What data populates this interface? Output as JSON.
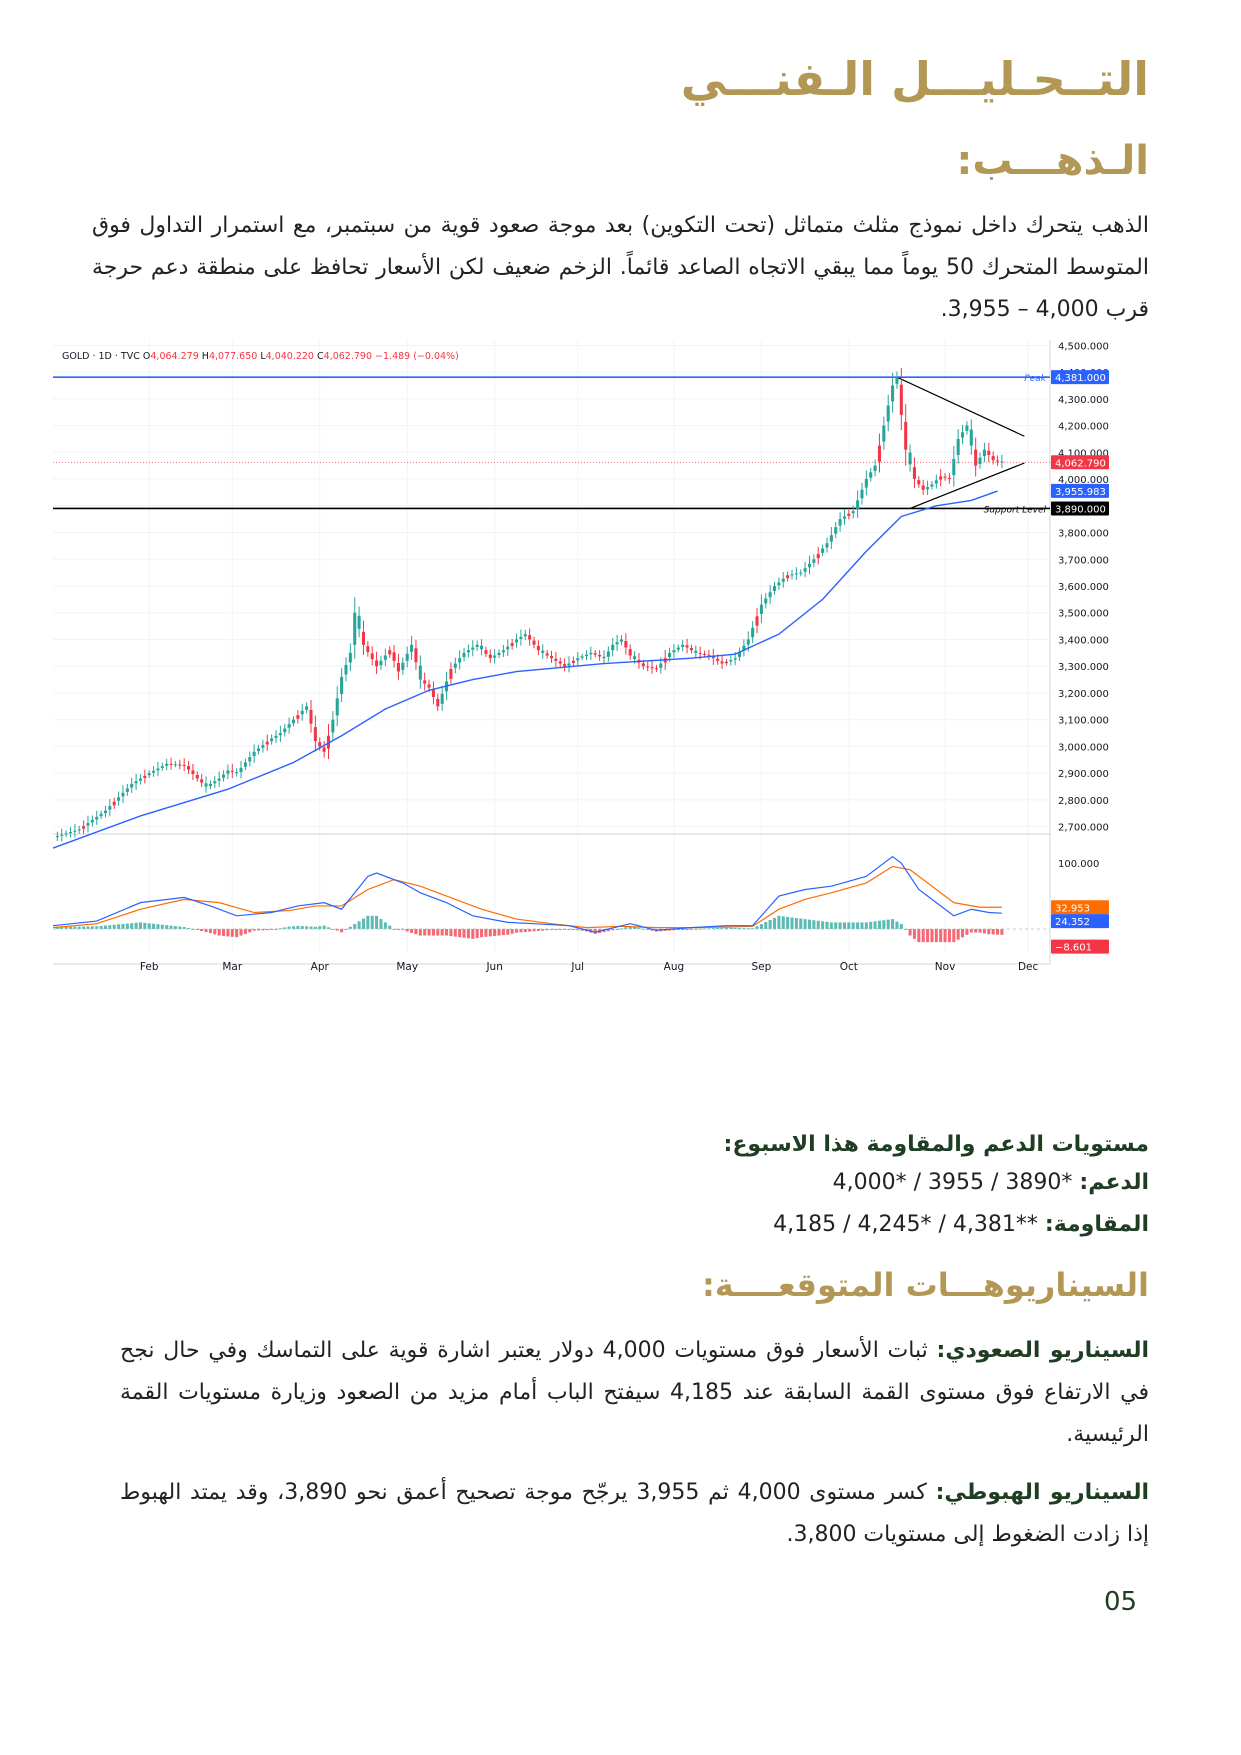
{
  "header": {
    "title": "التــحـليـــل الـفنـــي",
    "subtitle": "الـذهـــب:"
  },
  "intro": "الذهب يتحرك داخل نموذج مثلث متماثل (تحت التكوين) بعد موجة صعود قوية من سبتمبر، مع استمرار التداول فوق المتوسط المتحرك 50 يوماً مما يبقي الاتجاه الصاعد قائماً. الزخم ضعيف لكن الأسعار تحافظ على منطقة دعم حرجة قرب 4,000 – 3,955.",
  "chart_data": {
    "type": "candlestick",
    "header": {
      "symbol": "GOLD · 1D · TVC",
      "o_label": "O",
      "o": "4,064.279",
      "h_label": "H",
      "h": "4,077.650",
      "l_label": "L",
      "l": "4,040.220",
      "c_label": "C",
      "c": "4,062.790",
      "change": "−1.489 (−0.04%)"
    },
    "ylim": [
      2680,
      4520
    ],
    "y_ticks": [
      2700,
      2800,
      2900,
      3000,
      3100,
      3200,
      3300,
      3400,
      3500,
      3600,
      3700,
      3800,
      3900,
      4000,
      4100,
      4200,
      4300,
      4400,
      4500
    ],
    "y_tick_labels": [
      "2,700.000",
      "2,800.000",
      "2,900.000",
      "3,000.000",
      "3,100.000",
      "3,200.000",
      "3,300.000",
      "3,400.000",
      "3,500.000",
      "3,600.000",
      "3,700.000",
      "3,800.000",
      "3,900.000",
      "4,000.000",
      "4,100.000",
      "4,200.000",
      "4,300.000",
      "4,400.000",
      "4,500.000"
    ],
    "x_labels": [
      "Feb",
      "Mar",
      "Apr",
      "May",
      "Jun",
      "Jul",
      "Aug",
      "Sep",
      "Oct",
      "Nov",
      "Dec"
    ],
    "x_label_days": [
      22,
      41,
      61,
      81,
      101,
      120,
      142,
      162,
      182,
      204,
      223
    ],
    "x_range_days": [
      0,
      228
    ],
    "price_path": [
      [
        0,
        2660
      ],
      [
        6,
        2690
      ],
      [
        12,
        2760
      ],
      [
        18,
        2860
      ],
      [
        22,
        2900
      ],
      [
        26,
        2935
      ],
      [
        30,
        2930
      ],
      [
        33,
        2880
      ],
      [
        35,
        2850
      ],
      [
        38,
        2880
      ],
      [
        40,
        2910
      ],
      [
        42,
        2900
      ],
      [
        46,
        2980
      ],
      [
        50,
        3030
      ],
      [
        52,
        3050
      ],
      [
        55,
        3100
      ],
      [
        58,
        3150
      ],
      [
        60,
        3020
      ],
      [
        62,
        2980
      ],
      [
        64,
        3100
      ],
      [
        66,
        3260
      ],
      [
        68,
        3350
      ],
      [
        69,
        3500
      ],
      [
        71,
        3380
      ],
      [
        74,
        3300
      ],
      [
        77,
        3360
      ],
      [
        79,
        3280
      ],
      [
        82,
        3380
      ],
      [
        84,
        3250
      ],
      [
        86,
        3220
      ],
      [
        88,
        3150
      ],
      [
        91,
        3290
      ],
      [
        94,
        3350
      ],
      [
        97,
        3380
      ],
      [
        100,
        3330
      ],
      [
        103,
        3360
      ],
      [
        106,
        3400
      ],
      [
        108,
        3420
      ],
      [
        111,
        3360
      ],
      [
        114,
        3330
      ],
      [
        117,
        3300
      ],
      [
        120,
        3330
      ],
      [
        123,
        3350
      ],
      [
        126,
        3330
      ],
      [
        128,
        3380
      ],
      [
        130,
        3400
      ],
      [
        132,
        3340
      ],
      [
        135,
        3300
      ],
      [
        138,
        3290
      ],
      [
        141,
        3350
      ],
      [
        144,
        3380
      ],
      [
        147,
        3350
      ],
      [
        150,
        3340
      ],
      [
        153,
        3310
      ],
      [
        156,
        3330
      ],
      [
        159,
        3400
      ],
      [
        162,
        3530
      ],
      [
        165,
        3600
      ],
      [
        168,
        3640
      ],
      [
        171,
        3650
      ],
      [
        174,
        3700
      ],
      [
        177,
        3760
      ],
      [
        180,
        3850
      ],
      [
        183,
        3880
      ],
      [
        186,
        4000
      ],
      [
        188,
        4050
      ],
      [
        190,
        4200
      ],
      [
        192,
        4350
      ],
      [
        193,
        4381
      ],
      [
        194,
        4240
      ],
      [
        195,
        4110
      ],
      [
        197,
        4000
      ],
      [
        199,
        3960
      ],
      [
        201,
        3980
      ],
      [
        203,
        4010
      ],
      [
        205,
        4000
      ],
      [
        207,
        4150
      ],
      [
        209,
        4200
      ],
      [
        211,
        4050
      ],
      [
        213,
        4110
      ],
      [
        215,
        4070
      ],
      [
        217,
        4063
      ]
    ],
    "ma50_path": [
      [
        0,
        2620
      ],
      [
        20,
        2740
      ],
      [
        40,
        2840
      ],
      [
        55,
        2940
      ],
      [
        66,
        3040
      ],
      [
        76,
        3140
      ],
      [
        86,
        3210
      ],
      [
        96,
        3250
      ],
      [
        106,
        3280
      ],
      [
        116,
        3295
      ],
      [
        126,
        3310
      ],
      [
        136,
        3320
      ],
      [
        146,
        3330
      ],
      [
        156,
        3345
      ],
      [
        166,
        3420
      ],
      [
        176,
        3550
      ],
      [
        186,
        3730
      ],
      [
        194,
        3860
      ],
      [
        202,
        3900
      ],
      [
        210,
        3920
      ],
      [
        216,
        3955
      ]
    ],
    "levels": [
      {
        "name": "Peak",
        "value": 4381,
        "label": "4,381.000",
        "color": "#2962ff"
      },
      {
        "name": "Support Level",
        "value": 3890,
        "label": "3,890.000",
        "color": "#000000"
      }
    ],
    "last_price": {
      "value": 4062.79,
      "label": "4,062.790",
      "color": "#f23645"
    },
    "ma_value": {
      "value": 3955.983,
      "label": "3,955.983",
      "color": "#2962ff"
    },
    "triangle": {
      "apex_day": 221,
      "top_start": [
        193,
        4381
      ],
      "top_end": [
        221,
        4160
      ],
      "bottom_start": [
        196,
        3890
      ],
      "bottom_end": [
        221,
        4060
      ]
    },
    "indicator": {
      "type": "macd",
      "reference_label": "100.000",
      "macd_label": "24.352",
      "signal_label": "32.953",
      "hist_label": "−8.601",
      "macd_color": "#2962ff",
      "signal_color": "#ff6d00",
      "hist_up": "#26a69a",
      "hist_down": "#f23645",
      "ylim": [
        -35,
        120
      ],
      "macd_path": [
        [
          0,
          5
        ],
        [
          10,
          12
        ],
        [
          20,
          40
        ],
        [
          30,
          48
        ],
        [
          36,
          35
        ],
        [
          42,
          20
        ],
        [
          50,
          25
        ],
        [
          56,
          35
        ],
        [
          62,
          40
        ],
        [
          66,
          30
        ],
        [
          72,
          80
        ],
        [
          74,
          85
        ],
        [
          80,
          70
        ],
        [
          84,
          55
        ],
        [
          90,
          40
        ],
        [
          96,
          20
        ],
        [
          104,
          10
        ],
        [
          110,
          8
        ],
        [
          118,
          5
        ],
        [
          124,
          -5
        ],
        [
          132,
          8
        ],
        [
          138,
          -2
        ],
        [
          146,
          2
        ],
        [
          154,
          5
        ],
        [
          160,
          5
        ],
        [
          166,
          50
        ],
        [
          172,
          60
        ],
        [
          178,
          65
        ],
        [
          186,
          80
        ],
        [
          192,
          110
        ],
        [
          194,
          100
        ],
        [
          198,
          60
        ],
        [
          202,
          40
        ],
        [
          206,
          20
        ],
        [
          210,
          30
        ],
        [
          214,
          25
        ],
        [
          217,
          24
        ]
      ],
      "signal_path": [
        [
          0,
          2
        ],
        [
          10,
          8
        ],
        [
          20,
          30
        ],
        [
          30,
          45
        ],
        [
          38,
          40
        ],
        [
          46,
          25
        ],
        [
          54,
          28
        ],
        [
          60,
          35
        ],
        [
          66,
          35
        ],
        [
          72,
          60
        ],
        [
          78,
          75
        ],
        [
          84,
          65
        ],
        [
          90,
          50
        ],
        [
          98,
          30
        ],
        [
          106,
          15
        ],
        [
          114,
          8
        ],
        [
          122,
          2
        ],
        [
          130,
          4
        ],
        [
          138,
          2
        ],
        [
          146,
          2
        ],
        [
          154,
          3
        ],
        [
          160,
          4
        ],
        [
          166,
          30
        ],
        [
          172,
          45
        ],
        [
          178,
          55
        ],
        [
          186,
          70
        ],
        [
          192,
          95
        ],
        [
          196,
          90
        ],
        [
          200,
          70
        ],
        [
          206,
          40
        ],
        [
          212,
          33
        ],
        [
          217,
          33
        ]
      ]
    }
  },
  "levels_section": {
    "heading": "مستويات الدعم والمقاومة هذا الاسبوع:",
    "support_key": "الدعم:",
    "support_value": "4,000* / 3955 / 3890*",
    "resistance_key": "المقاومة:",
    "resistance_value": "4,185 / 4,245* / 4,381**"
  },
  "scenarios": {
    "heading": "السيناريوهـــات المتوقعــــة:",
    "bull_key": "السيناريو الصعودي:",
    "bull_text": "ثبات الأسعار فوق مستويات 4,000 دولار يعتبر اشارة قوية على التماسك وفي حال نجح في الارتفاع فوق مستوى القمة السابقة عند 4,185 سيفتح الباب أمام مزيد من الصعود وزيارة مستويات القمة الرئيسية.",
    "bear_key": "السيناريو الهبوطي:",
    "bear_text": "كسر مستوى 4,000 ثم 3,955 يرجّح موجة تصحيح أعمق نحو 3,890، وقد يمتد الهبوط إذا زادت الضغوط إلى مستويات 3,800."
  },
  "page_number": "05"
}
